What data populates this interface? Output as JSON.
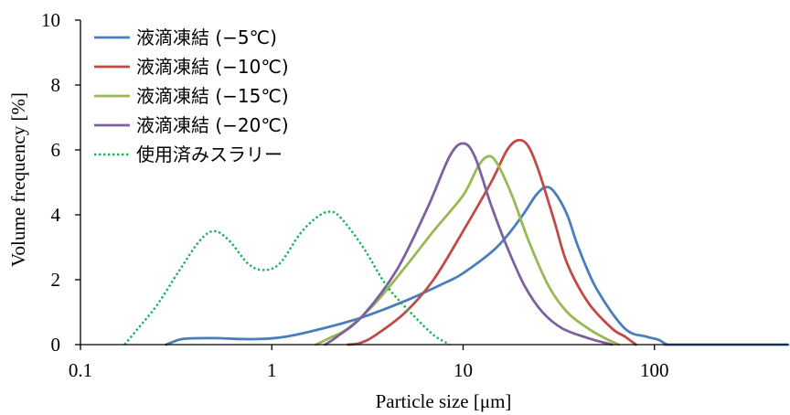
{
  "chart_data": {
    "type": "line",
    "xlabel": "Particle size [μm]",
    "ylabel": "Volume frequency [%]",
    "xscale": "log",
    "xlim": [
      0.1,
      500
    ],
    "ylim": [
      0,
      10
    ],
    "xticks": [
      {
        "value": 0.1,
        "label": "0.1"
      },
      {
        "value": 1,
        "label": "1"
      },
      {
        "value": 10,
        "label": "10"
      },
      {
        "value": 100,
        "label": "100"
      }
    ],
    "yticks": [
      {
        "value": 0,
        "label": "0"
      },
      {
        "value": 2,
        "label": "2"
      },
      {
        "value": 4,
        "label": "4"
      },
      {
        "value": 6,
        "label": "6"
      },
      {
        "value": 8,
        "label": "8"
      },
      {
        "value": 10,
        "label": "10"
      }
    ],
    "grid": false,
    "legend_position": "top-left",
    "series": [
      {
        "name": "液滴凍結 (−5℃)",
        "color": "#4a7ebb",
        "dash": "solid",
        "points": [
          [
            0.28,
            0
          ],
          [
            0.31,
            0.1
          ],
          [
            0.35,
            0.18
          ],
          [
            0.5,
            0.2
          ],
          [
            0.8,
            0.17
          ],
          [
            1.2,
            0.25
          ],
          [
            2,
            0.55
          ],
          [
            3,
            0.85
          ],
          [
            5,
            1.35
          ],
          [
            8,
            1.9
          ],
          [
            10,
            2.2
          ],
          [
            15,
            3.0
          ],
          [
            20,
            3.9
          ],
          [
            24,
            4.6
          ],
          [
            27,
            4.85
          ],
          [
            30,
            4.7
          ],
          [
            35,
            4.0
          ],
          [
            40,
            3.0
          ],
          [
            50,
            1.7
          ],
          [
            70,
            0.5
          ],
          [
            90,
            0.25
          ],
          [
            105,
            0.15
          ],
          [
            115,
            0.02
          ],
          [
            130,
            0
          ],
          [
            500,
            0
          ]
        ]
      },
      {
        "name": "液滴凍結 (−10℃)",
        "color": "#be4b48",
        "dash": "solid",
        "points": [
          [
            2.5,
            0
          ],
          [
            2.9,
            0.05
          ],
          [
            3.5,
            0.3
          ],
          [
            5,
            1.0
          ],
          [
            7,
            2.0
          ],
          [
            10,
            3.5
          ],
          [
            14,
            5.0
          ],
          [
            17,
            6.0
          ],
          [
            19.5,
            6.3
          ],
          [
            22,
            6.1
          ],
          [
            25,
            5.3
          ],
          [
            30,
            3.8
          ],
          [
            35,
            2.5
          ],
          [
            45,
            1.3
          ],
          [
            60,
            0.5
          ],
          [
            70,
            0.25
          ],
          [
            80,
            0
          ]
        ]
      },
      {
        "name": "液滴凍結 (−15℃)",
        "color": "#98b954",
        "dash": "solid",
        "points": [
          [
            1.7,
            0
          ],
          [
            2,
            0.2
          ],
          [
            2.5,
            0.5
          ],
          [
            3.5,
            1.3
          ],
          [
            5,
            2.4
          ],
          [
            7,
            3.5
          ],
          [
            10,
            4.6
          ],
          [
            12,
            5.5
          ],
          [
            13.5,
            5.8
          ],
          [
            15,
            5.6
          ],
          [
            18,
            4.6
          ],
          [
            22,
            3.2
          ],
          [
            28,
            1.8
          ],
          [
            35,
            1.0
          ],
          [
            45,
            0.5
          ],
          [
            55,
            0.2
          ],
          [
            65,
            0
          ]
        ]
      },
      {
        "name": "液滴凍結 (−20℃)",
        "color": "#7d60a0",
        "dash": "solid",
        "points": [
          [
            1.9,
            0
          ],
          [
            2.2,
            0.25
          ],
          [
            3,
            0.9
          ],
          [
            4.5,
            2.3
          ],
          [
            6.5,
            4.2
          ],
          [
            8.5,
            5.8
          ],
          [
            10,
            6.2
          ],
          [
            11.5,
            5.8
          ],
          [
            14,
            4.3
          ],
          [
            17,
            3.0
          ],
          [
            21,
            1.8
          ],
          [
            26,
            1.0
          ],
          [
            33,
            0.5
          ],
          [
            45,
            0.2
          ],
          [
            60,
            0
          ]
        ]
      },
      {
        "name": "使用済みスラリー",
        "color": "#19b45a",
        "dash": "dotted",
        "points": [
          [
            0.17,
            0
          ],
          [
            0.2,
            0.5
          ],
          [
            0.25,
            1.2
          ],
          [
            0.33,
            2.3
          ],
          [
            0.42,
            3.2
          ],
          [
            0.5,
            3.5
          ],
          [
            0.6,
            3.2
          ],
          [
            0.75,
            2.5
          ],
          [
            0.9,
            2.3
          ],
          [
            1.1,
            2.5
          ],
          [
            1.4,
            3.4
          ],
          [
            1.7,
            3.9
          ],
          [
            2.0,
            4.1
          ],
          [
            2.3,
            3.9
          ],
          [
            3,
            3.0
          ],
          [
            4,
            1.8
          ],
          [
            5.5,
            0.9
          ],
          [
            7,
            0.3
          ],
          [
            8.5,
            0
          ]
        ]
      }
    ]
  }
}
